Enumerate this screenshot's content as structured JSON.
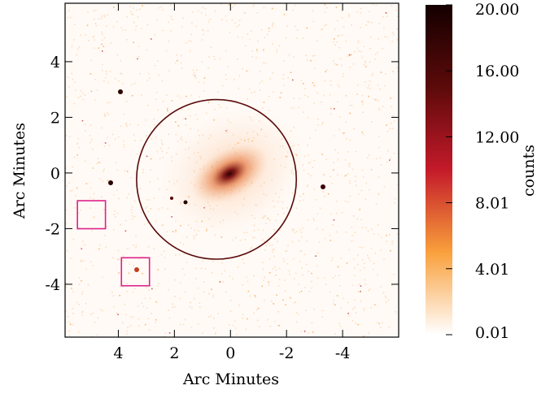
{
  "chart_data": {
    "type": "image",
    "xlabel": "Arc Minutes",
    "ylabel": "Arc Minutes",
    "xlim": [
      5.9,
      -6.0
    ],
    "ylim": [
      -5.9,
      6.1
    ],
    "xticks": [
      4,
      2,
      0,
      -2,
      -4
    ],
    "yticks": [
      -4,
      -2,
      0,
      2,
      4
    ],
    "colorbar": {
      "label": "counts",
      "lim": [
        0.01,
        20.0
      ],
      "ticks": [
        0.01,
        4.01,
        8.01,
        {
          "value": 12.0,
          "label": "12.00"
        },
        {
          "value": 16.0,
          "label": "16.00"
        },
        {
          "value": 20.0,
          "label": "20.00"
        }
      ],
      "colormap": [
        "#ffffff",
        "#f9a03c",
        "#c41a2a",
        "#5c0a0a",
        "#140000"
      ]
    },
    "regions": [
      {
        "shape": "circle",
        "x": 0.5,
        "y": -0.23,
        "r": 2.85,
        "color": "#5a0a0a"
      },
      {
        "shape": "box",
        "x": 4.96,
        "y": -1.5,
        "size": 1.0,
        "color": "#e0208a"
      },
      {
        "shape": "box",
        "x": 3.39,
        "y": -3.55,
        "size": 1.0,
        "color": "#e0208a"
      }
    ]
  }
}
